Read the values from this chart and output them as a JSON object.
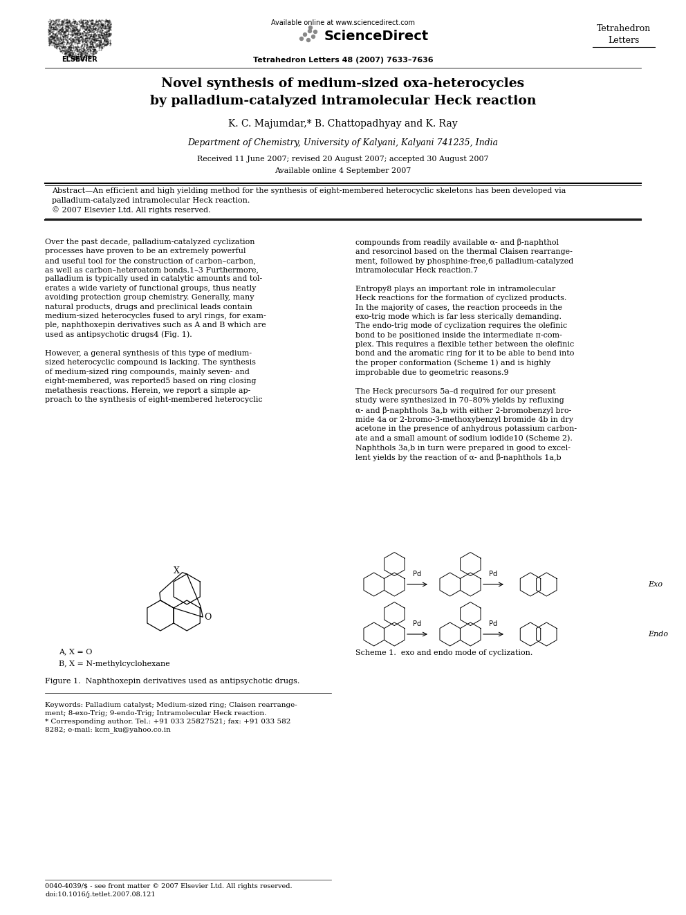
{
  "bg_color": "#ffffff",
  "page_width": 9.92,
  "page_height": 13.23,
  "dpi": 100,
  "header": {
    "elsevier_text": "ELSEVIER",
    "available_online": "Available online at www.sciencedirect.com",
    "sciencedirect": "ScienceDirect",
    "journal_name_right": "Tetrahedron\nLetters",
    "journal_issue": "Tetrahedron Letters 48 (2007) 7633–7636"
  },
  "title": "Novel synthesis of medium-sized oxa-heterocycles\nby palladium-catalyzed intramolecular Heck reaction",
  "authors": "K. C. Majumdar,* B. Chattopadhyay and K. Ray",
  "affiliation": "Department of Chemistry, University of Kalyani, Kalyani 741235, India",
  "received": "Received 11 June 2007; revised 20 August 2007; accepted 30 August 2007",
  "available": "Available online 4 September 2007",
  "abstract_label": "Abstract",
  "abstract_text": "An efficient and high yielding method for the synthesis of eight-membered heterocyclic skeletons has been developed via\npalladium-catalyzed intramolecular Heck reaction.\n© 2007 Elsevier Ltd. All rights reserved.",
  "left_col_text": "Over the past decade, palladium-catalyzed cyclization\nprocesses have proven to be an extremely powerful\nand useful tool for the construction of carbon–carbon,\nas well as carbon–heteroatom bonds.1–3 Furthermore,\npalladium is typically used in catalytic amounts and tol-\nerates a wide variety of functional groups, thus neatly\navoiding protection group chemistry. Generally, many\nnatural products, drugs and preclinical leads contain\nmedium-sized heterocycles fused to aryl rings, for exam-\nple, naphthoxepin derivatives such as A and B which are\nused as antipsychotic drugs4 (Fig. 1).\n\nHowever, a general synthesis of this type of medium-\nsized heterocyclic compound is lacking. The synthesis\nof medium-sized ring compounds, mainly seven- and\neight-membered, was reported5 based on ring closing\nmetathesis reactions. Herein, we report a simple ap-\nproach to the synthesis of eight-membered heterocyclic",
  "right_col_text": "compounds from readily available α- and β-naphthol\nand resorcinol based on the thermal Claisen rearrange-\nment, followed by phosphine-free,6 palladium-catalyzed\nintramolecular Heck reaction.7\n\nEntropy8 plays an important role in intramolecular\nHeck reactions for the formation of cyclized products.\nIn the majority of cases, the reaction proceeds in the\nexo-trig mode which is far less sterically demanding.\nThe endo-trig mode of cyclization requires the olefinic\nbond to be positioned inside the intermediate π-com-\nplex. This requires a flexible tether between the olefinic\nbond and the aromatic ring for it to be able to bend into\nthe proper conformation (Scheme 1) and is highly\nimprobable due to geometric reasons.9\n\nThe Heck precursors 5a–d required for our present\nstudy were synthesized in 70–80% yields by refluxing\nα- and β-naphthols 3a,b with either 2-bromobenzyl bro-\nmide 4a or 2-bromo-3-methoxybenzyl bromide 4b in dry\nacetone in the presence of anhydrous potassium carbon-\nate and a small amount of sodium iodide10 (Scheme 2).\nNaphthols 3a,b in turn were prepared in good to excel-\nlent yields by the reaction of α- and β-naphthols 1a,b",
  "figure1_caption": "Figure 1.  Naphthoxepin derivatives used as antipsychotic drugs.",
  "scheme1_caption": "Scheme 1.  exo and endo mode of cyclization.",
  "keywords_text": "Keywords: Palladium catalyst; Medium-sized ring; Claisen rearrange-\nment; 8-exo-Trig; 9-endo-Trig; Intramolecular Heck reaction.\n* Corresponding author. Tel.: +91 033 25827521; fax: +91 033 582\n8282; e-mail: kcm_ku@yahoo.co.in",
  "footer_text": "0040-4039/$ - see front matter © 2007 Elsevier Ltd. All rights reserved.\ndoi:10.1016/j.tetlet.2007.08.121"
}
